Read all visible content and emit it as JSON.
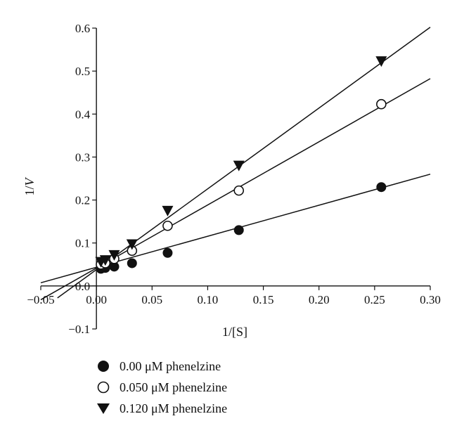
{
  "chart_data": {
    "type": "line",
    "xlabel": "1/[S]",
    "ylabel_prefix": "1/",
    "ylabel_var": "V",
    "xlim": [
      -0.05,
      0.3
    ],
    "ylim": [
      -0.1,
      0.6
    ],
    "xticks": [
      "−0.05",
      "0.00",
      "0.05",
      "0.10",
      "0.15",
      "0.20",
      "0.25",
      "0.30"
    ],
    "xtick_values": [
      -0.05,
      0,
      0.05,
      0.1,
      0.15,
      0.2,
      0.25,
      0.3
    ],
    "yticks": [
      "−0.1",
      "0.0",
      "0.1",
      "0.2",
      "0.3",
      "0.4",
      "0.5",
      "0.6"
    ],
    "ytick_values": [
      -0.1,
      0,
      0.1,
      0.2,
      0.3,
      0.4,
      0.5,
      0.6
    ],
    "series": [
      {
        "name": "0.00 μM phenelzine",
        "marker": "filled-circle",
        "points": [
          [
            0.004,
            0.04
          ],
          [
            0.008,
            0.042
          ],
          [
            0.016,
            0.045
          ],
          [
            0.032,
            0.053
          ],
          [
            0.064,
            0.077
          ],
          [
            0.128,
            0.13
          ],
          [
            0.256,
            0.23
          ]
        ],
        "fit": {
          "slope": 0.722,
          "intercept": 0.0435,
          "x_range": [
            -0.05,
            0.3
          ]
        }
      },
      {
        "name": "0.050 μM phenelzine",
        "marker": "open-circle",
        "points": [
          [
            0.004,
            0.05
          ],
          [
            0.008,
            0.053
          ],
          [
            0.016,
            0.063
          ],
          [
            0.032,
            0.082
          ],
          [
            0.064,
            0.14
          ],
          [
            0.128,
            0.222
          ],
          [
            0.256,
            0.423
          ]
        ],
        "fit": {
          "slope": 1.47,
          "intercept": 0.0415,
          "x_range": [
            -0.05,
            0.3
          ]
        }
      },
      {
        "name": "0.120 μM phenelzine",
        "marker": "filled-triangle-down",
        "points": [
          [
            0.004,
            0.056
          ],
          [
            0.008,
            0.06
          ],
          [
            0.016,
            0.072
          ],
          [
            0.032,
            0.097
          ],
          [
            0.064,
            0.175
          ],
          [
            0.128,
            0.28
          ],
          [
            0.256,
            0.523
          ]
        ],
        "fit": {
          "slope": 1.88,
          "intercept": 0.038,
          "x_range": [
            -0.035,
            0.3
          ]
        }
      }
    ]
  }
}
